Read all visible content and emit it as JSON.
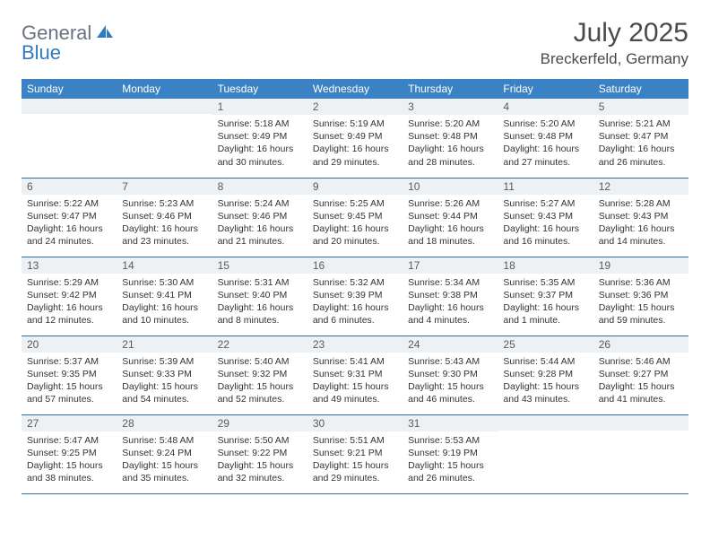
{
  "brand": {
    "text_general": "General",
    "text_blue": "Blue",
    "icon_color": "#2f7bbf"
  },
  "header": {
    "month_title": "July 2025",
    "location": "Breckerfeld, Germany"
  },
  "colors": {
    "header_bg": "#3b82c4",
    "header_text": "#ffffff",
    "daynum_bg": "#eef1f4",
    "row_border": "#2f6ea8",
    "body_text": "#333333"
  },
  "weekdays": [
    "Sunday",
    "Monday",
    "Tuesday",
    "Wednesday",
    "Thursday",
    "Friday",
    "Saturday"
  ],
  "weeks": [
    [
      null,
      null,
      {
        "n": "1",
        "sunrise": "Sunrise: 5:18 AM",
        "sunset": "Sunset: 9:49 PM",
        "dl1": "Daylight: 16 hours",
        "dl2": "and 30 minutes."
      },
      {
        "n": "2",
        "sunrise": "Sunrise: 5:19 AM",
        "sunset": "Sunset: 9:49 PM",
        "dl1": "Daylight: 16 hours",
        "dl2": "and 29 minutes."
      },
      {
        "n": "3",
        "sunrise": "Sunrise: 5:20 AM",
        "sunset": "Sunset: 9:48 PM",
        "dl1": "Daylight: 16 hours",
        "dl2": "and 28 minutes."
      },
      {
        "n": "4",
        "sunrise": "Sunrise: 5:20 AM",
        "sunset": "Sunset: 9:48 PM",
        "dl1": "Daylight: 16 hours",
        "dl2": "and 27 minutes."
      },
      {
        "n": "5",
        "sunrise": "Sunrise: 5:21 AM",
        "sunset": "Sunset: 9:47 PM",
        "dl1": "Daylight: 16 hours",
        "dl2": "and 26 minutes."
      }
    ],
    [
      {
        "n": "6",
        "sunrise": "Sunrise: 5:22 AM",
        "sunset": "Sunset: 9:47 PM",
        "dl1": "Daylight: 16 hours",
        "dl2": "and 24 minutes."
      },
      {
        "n": "7",
        "sunrise": "Sunrise: 5:23 AM",
        "sunset": "Sunset: 9:46 PM",
        "dl1": "Daylight: 16 hours",
        "dl2": "and 23 minutes."
      },
      {
        "n": "8",
        "sunrise": "Sunrise: 5:24 AM",
        "sunset": "Sunset: 9:46 PM",
        "dl1": "Daylight: 16 hours",
        "dl2": "and 21 minutes."
      },
      {
        "n": "9",
        "sunrise": "Sunrise: 5:25 AM",
        "sunset": "Sunset: 9:45 PM",
        "dl1": "Daylight: 16 hours",
        "dl2": "and 20 minutes."
      },
      {
        "n": "10",
        "sunrise": "Sunrise: 5:26 AM",
        "sunset": "Sunset: 9:44 PM",
        "dl1": "Daylight: 16 hours",
        "dl2": "and 18 minutes."
      },
      {
        "n": "11",
        "sunrise": "Sunrise: 5:27 AM",
        "sunset": "Sunset: 9:43 PM",
        "dl1": "Daylight: 16 hours",
        "dl2": "and 16 minutes."
      },
      {
        "n": "12",
        "sunrise": "Sunrise: 5:28 AM",
        "sunset": "Sunset: 9:43 PM",
        "dl1": "Daylight: 16 hours",
        "dl2": "and 14 minutes."
      }
    ],
    [
      {
        "n": "13",
        "sunrise": "Sunrise: 5:29 AM",
        "sunset": "Sunset: 9:42 PM",
        "dl1": "Daylight: 16 hours",
        "dl2": "and 12 minutes."
      },
      {
        "n": "14",
        "sunrise": "Sunrise: 5:30 AM",
        "sunset": "Sunset: 9:41 PM",
        "dl1": "Daylight: 16 hours",
        "dl2": "and 10 minutes."
      },
      {
        "n": "15",
        "sunrise": "Sunrise: 5:31 AM",
        "sunset": "Sunset: 9:40 PM",
        "dl1": "Daylight: 16 hours",
        "dl2": "and 8 minutes."
      },
      {
        "n": "16",
        "sunrise": "Sunrise: 5:32 AM",
        "sunset": "Sunset: 9:39 PM",
        "dl1": "Daylight: 16 hours",
        "dl2": "and 6 minutes."
      },
      {
        "n": "17",
        "sunrise": "Sunrise: 5:34 AM",
        "sunset": "Sunset: 9:38 PM",
        "dl1": "Daylight: 16 hours",
        "dl2": "and 4 minutes."
      },
      {
        "n": "18",
        "sunrise": "Sunrise: 5:35 AM",
        "sunset": "Sunset: 9:37 PM",
        "dl1": "Daylight: 16 hours",
        "dl2": "and 1 minute."
      },
      {
        "n": "19",
        "sunrise": "Sunrise: 5:36 AM",
        "sunset": "Sunset: 9:36 PM",
        "dl1": "Daylight: 15 hours",
        "dl2": "and 59 minutes."
      }
    ],
    [
      {
        "n": "20",
        "sunrise": "Sunrise: 5:37 AM",
        "sunset": "Sunset: 9:35 PM",
        "dl1": "Daylight: 15 hours",
        "dl2": "and 57 minutes."
      },
      {
        "n": "21",
        "sunrise": "Sunrise: 5:39 AM",
        "sunset": "Sunset: 9:33 PM",
        "dl1": "Daylight: 15 hours",
        "dl2": "and 54 minutes."
      },
      {
        "n": "22",
        "sunrise": "Sunrise: 5:40 AM",
        "sunset": "Sunset: 9:32 PM",
        "dl1": "Daylight: 15 hours",
        "dl2": "and 52 minutes."
      },
      {
        "n": "23",
        "sunrise": "Sunrise: 5:41 AM",
        "sunset": "Sunset: 9:31 PM",
        "dl1": "Daylight: 15 hours",
        "dl2": "and 49 minutes."
      },
      {
        "n": "24",
        "sunrise": "Sunrise: 5:43 AM",
        "sunset": "Sunset: 9:30 PM",
        "dl1": "Daylight: 15 hours",
        "dl2": "and 46 minutes."
      },
      {
        "n": "25",
        "sunrise": "Sunrise: 5:44 AM",
        "sunset": "Sunset: 9:28 PM",
        "dl1": "Daylight: 15 hours",
        "dl2": "and 43 minutes."
      },
      {
        "n": "26",
        "sunrise": "Sunrise: 5:46 AM",
        "sunset": "Sunset: 9:27 PM",
        "dl1": "Daylight: 15 hours",
        "dl2": "and 41 minutes."
      }
    ],
    [
      {
        "n": "27",
        "sunrise": "Sunrise: 5:47 AM",
        "sunset": "Sunset: 9:25 PM",
        "dl1": "Daylight: 15 hours",
        "dl2": "and 38 minutes."
      },
      {
        "n": "28",
        "sunrise": "Sunrise: 5:48 AM",
        "sunset": "Sunset: 9:24 PM",
        "dl1": "Daylight: 15 hours",
        "dl2": "and 35 minutes."
      },
      {
        "n": "29",
        "sunrise": "Sunrise: 5:50 AM",
        "sunset": "Sunset: 9:22 PM",
        "dl1": "Daylight: 15 hours",
        "dl2": "and 32 minutes."
      },
      {
        "n": "30",
        "sunrise": "Sunrise: 5:51 AM",
        "sunset": "Sunset: 9:21 PM",
        "dl1": "Daylight: 15 hours",
        "dl2": "and 29 minutes."
      },
      {
        "n": "31",
        "sunrise": "Sunrise: 5:53 AM",
        "sunset": "Sunset: 9:19 PM",
        "dl1": "Daylight: 15 hours",
        "dl2": "and 26 minutes."
      },
      null,
      null
    ]
  ]
}
